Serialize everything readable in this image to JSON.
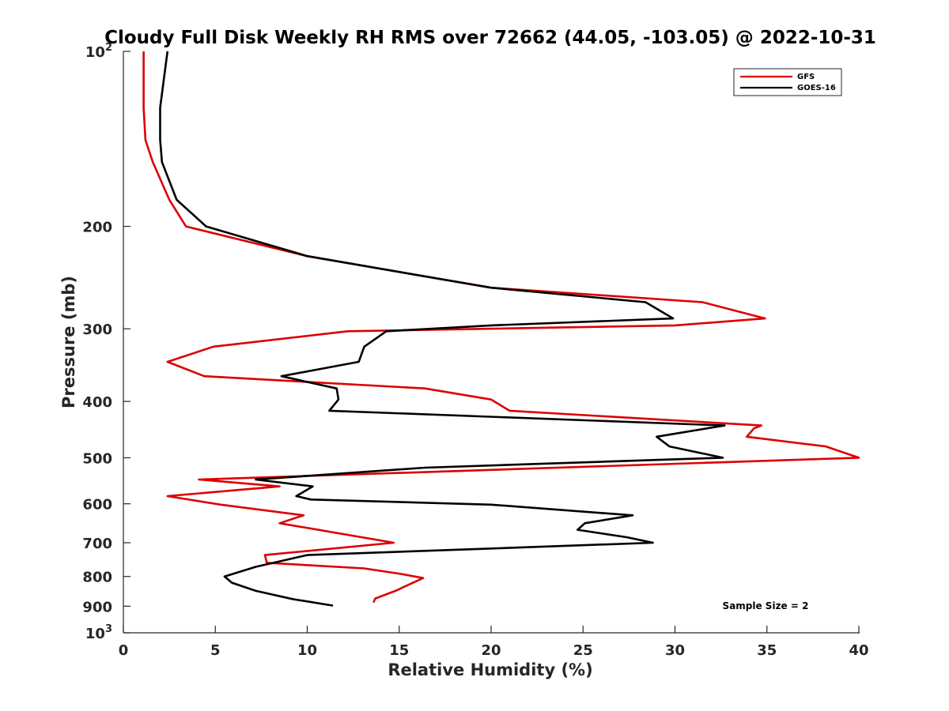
{
  "chart_data": {
    "type": "line",
    "title": "Cloudy Full Disk Weekly RH RMS over 72662 (44.05, -103.05) @ 2022-10-31",
    "xlabel": "Relative Humidity (%)",
    "ylabel": "Pressure (mb)",
    "xlim": [
      0,
      40
    ],
    "ylim": [
      100,
      1000
    ],
    "yscale": "log",
    "y_reversed": true,
    "xticks": [
      0,
      5,
      10,
      15,
      20,
      25,
      30,
      35,
      40
    ],
    "xtick_labels": [
      "0",
      "5",
      "10",
      "15",
      "20",
      "25",
      "30",
      "35",
      "40"
    ],
    "yticks": [
      100,
      200,
      300,
      400,
      500,
      600,
      700,
      800,
      900,
      1000
    ],
    "ytick_labels": [
      {
        "base": "10",
        "exp": "2"
      },
      {
        "base": "200"
      },
      {
        "base": "300"
      },
      {
        "base": "400"
      },
      {
        "base": "500"
      },
      {
        "base": "600"
      },
      {
        "base": "700"
      },
      {
        "base": "800"
      },
      {
        "base": "900"
      },
      {
        "base": "10",
        "exp": "3"
      }
    ],
    "grid": false,
    "legend_position": "top-right",
    "annotation": "Sample Size = 2",
    "series": [
      {
        "name": "GFS",
        "color": "#dd0000",
        "x": [
          1.1,
          1.1,
          1.2,
          1.6,
          2.5,
          3.4,
          10.0,
          20.0,
          31.5,
          34.9,
          30.0,
          12.2,
          4.9,
          2.4,
          4.4,
          16.4,
          20.0,
          21.0,
          34.7,
          34.3,
          33.9,
          38.2,
          40.0,
          4.1,
          8.5,
          2.4,
          5.3,
          9.8,
          8.5,
          14.7,
          7.7,
          7.8,
          13.1,
          15.1,
          16.3,
          14.8,
          13.7,
          13.6
        ],
        "y": [
          100,
          125,
          142,
          155,
          180,
          200,
          225,
          255,
          270,
          288,
          296,
          303,
          322,
          342,
          362,
          380,
          397,
          415,
          440,
          445,
          460,
          478,
          500,
          545,
          560,
          582,
          602,
          628,
          648,
          700,
          735,
          758,
          775,
          792,
          805,
          847,
          873,
          887
        ]
      },
      {
        "name": "GOES-16",
        "color": "#000000",
        "x": [
          2.4,
          2.0,
          2.0,
          2.1,
          2.9,
          4.5,
          10.0,
          20.0,
          28.4,
          29.9,
          20.0,
          14.3,
          13.1,
          12.8,
          8.6,
          11.6,
          11.7,
          11.2,
          32.7,
          29.0,
          29.7,
          32.6,
          16.4,
          7.2,
          10.3,
          9.4,
          10.2,
          20.0,
          27.7,
          25.1,
          24.7,
          27.4,
          28.8,
          10.0,
          7.2,
          5.5,
          5.9,
          7.2,
          9.2,
          11.4
        ],
        "y": [
          100,
          125,
          142,
          155,
          180,
          200,
          225,
          255,
          270,
          288,
          296,
          303,
          322,
          342,
          362,
          380,
          397,
          415,
          440,
          460,
          478,
          500,
          520,
          545,
          560,
          582,
          590,
          602,
          628,
          648,
          665,
          685,
          700,
          735,
          770,
          800,
          820,
          847,
          875,
          898
        ]
      }
    ]
  }
}
